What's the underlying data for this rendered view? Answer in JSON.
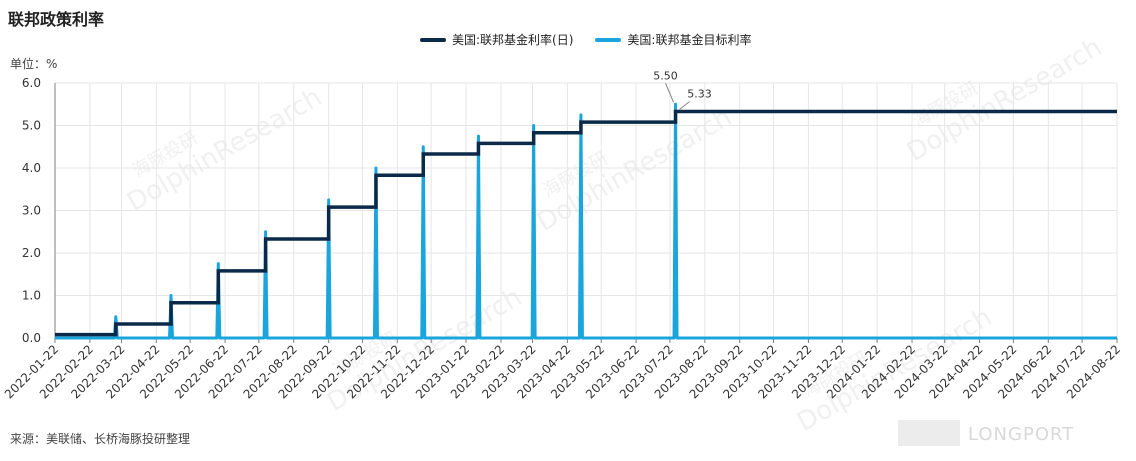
{
  "header": {
    "title": "联邦政策利率",
    "unit_label": "单位：%"
  },
  "footer": {
    "source": "来源：美联储、长桥海豚投研整理",
    "brand": "LONGPORT"
  },
  "colors": {
    "daily": "#0b2a4a",
    "target": "#1aa5dc",
    "grid": "#e6e6e6",
    "axis": "#7f7f7f"
  },
  "watermark": {
    "cn": "海豚投研",
    "en": "DolphinResearch"
  },
  "chart_data": {
    "type": "line",
    "title": "联邦政策利率",
    "ylabel": "%",
    "xlabel": "",
    "ylim": [
      0,
      6
    ],
    "yticks": [
      "0.0",
      "1.0",
      "2.0",
      "3.0",
      "4.0",
      "5.0",
      "6.0"
    ],
    "x_tick_labels": [
      "2022-01-22",
      "2022-02-22",
      "2022-03-22",
      "2022-04-22",
      "2022-05-22",
      "2022-06-22",
      "2022-07-22",
      "2022-08-22",
      "2022-09-22",
      "2022-10-22",
      "2022-11-22",
      "2022-12-22",
      "2023-01-22",
      "2023-02-22",
      "2023-03-22",
      "2023-04-22",
      "2023-05-22",
      "2023-06-22",
      "2023-07-22",
      "2023-08-22",
      "2023-09-22",
      "2023-10-22",
      "2023-11-22",
      "2023-12-22",
      "2024-01-22",
      "2024-02-22",
      "2024-03-22",
      "2024-04-22",
      "2024-05-22",
      "2024-06-22",
      "2024-07-22",
      "2024-08-22"
    ],
    "x_range": [
      "2022-01-22",
      "2024-08-22"
    ],
    "legend_position": "top-center",
    "grid": true,
    "series": [
      {
        "name": "美国:联邦基金利率(日)",
        "color": "#0b2a4a",
        "steps": [
          {
            "date": "2022-01-22",
            "value": 0.08
          },
          {
            "date": "2022-03-17",
            "value": 0.33
          },
          {
            "date": "2022-05-05",
            "value": 0.83
          },
          {
            "date": "2022-06-16",
            "value": 1.58
          },
          {
            "date": "2022-07-28",
            "value": 2.33
          },
          {
            "date": "2022-09-22",
            "value": 3.08
          },
          {
            "date": "2022-11-03",
            "value": 3.83
          },
          {
            "date": "2022-12-15",
            "value": 4.33
          },
          {
            "date": "2023-02-02",
            "value": 4.58
          },
          {
            "date": "2023-03-23",
            "value": 4.83
          },
          {
            "date": "2023-05-04",
            "value": 5.08
          },
          {
            "date": "2023-07-27",
            "value": 5.33
          },
          {
            "date": "2024-08-22",
            "value": 5.33
          }
        ]
      },
      {
        "name": "美国:联邦基金目标利率",
        "color": "#1aa5dc",
        "spikes": [
          {
            "date": "2022-03-17",
            "value": 0.5
          },
          {
            "date": "2022-05-05",
            "value": 1.0
          },
          {
            "date": "2022-06-16",
            "value": 1.75
          },
          {
            "date": "2022-07-28",
            "value": 2.5
          },
          {
            "date": "2022-09-22",
            "value": 3.25
          },
          {
            "date": "2022-11-03",
            "value": 4.0
          },
          {
            "date": "2022-12-15",
            "value": 4.5
          },
          {
            "date": "2023-02-02",
            "value": 4.75
          },
          {
            "date": "2023-03-23",
            "value": 5.0
          },
          {
            "date": "2023-05-04",
            "value": 5.25
          },
          {
            "date": "2023-07-27",
            "value": 5.5
          }
        ]
      }
    ],
    "annotations": [
      {
        "text": "5.50",
        "series": "美国:联邦基金目标利率",
        "date": "2023-07-27",
        "value": 5.5
      },
      {
        "text": "5.33",
        "series": "美国:联邦基金利率(日)",
        "date": "2023-07-27",
        "value": 5.33
      }
    ]
  }
}
